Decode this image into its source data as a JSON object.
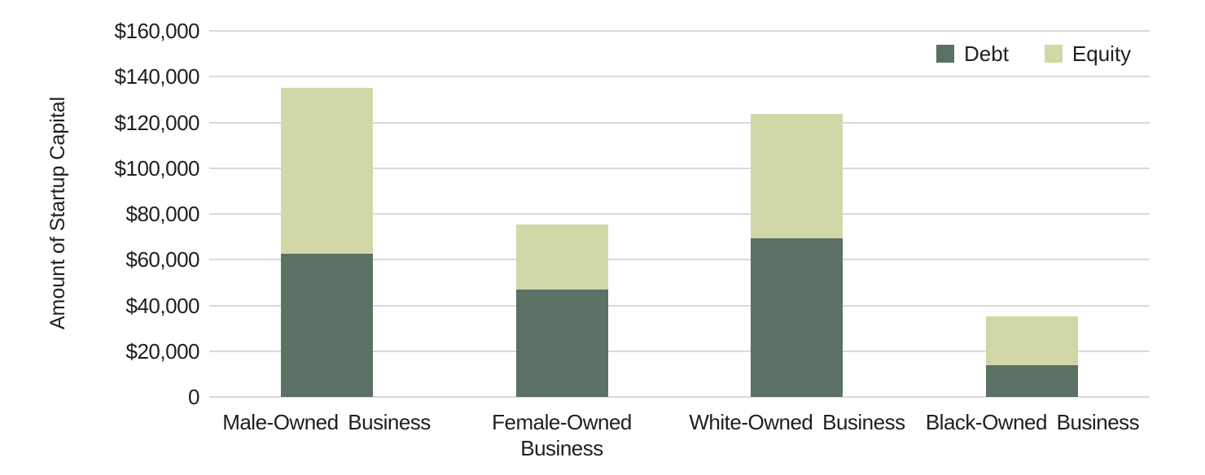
{
  "chart_data": {
    "type": "bar",
    "stacked": true,
    "title": "",
    "xlabel": "",
    "ylabel": "Amount of Startup Capital",
    "categories": [
      "Male-Owned Business",
      "Female-Owned\nBusiness",
      "White-Owned Business",
      "Black-Owned Business"
    ],
    "series": [
      {
        "name": "Debt",
        "color": "#5a7163",
        "values": [
          62500,
          47000,
          69500,
          14000
        ]
      },
      {
        "name": "Equity",
        "color": "#d1d7a7",
        "values": [
          72500,
          28500,
          54500,
          21500
        ]
      }
    ],
    "totals": [
      135000,
      75500,
      124000,
      35500
    ],
    "ylim": [
      0,
      160000
    ],
    "ytick_step": 20000,
    "ytick_labels": [
      "0",
      "$20,000",
      "$40,000",
      "$60,000",
      "$80,000",
      "$100,000",
      "$120,000",
      "$140,000",
      "$160,000"
    ],
    "grid": true,
    "gridline_color": "#d9d9d9",
    "legend_position": "top-right"
  }
}
